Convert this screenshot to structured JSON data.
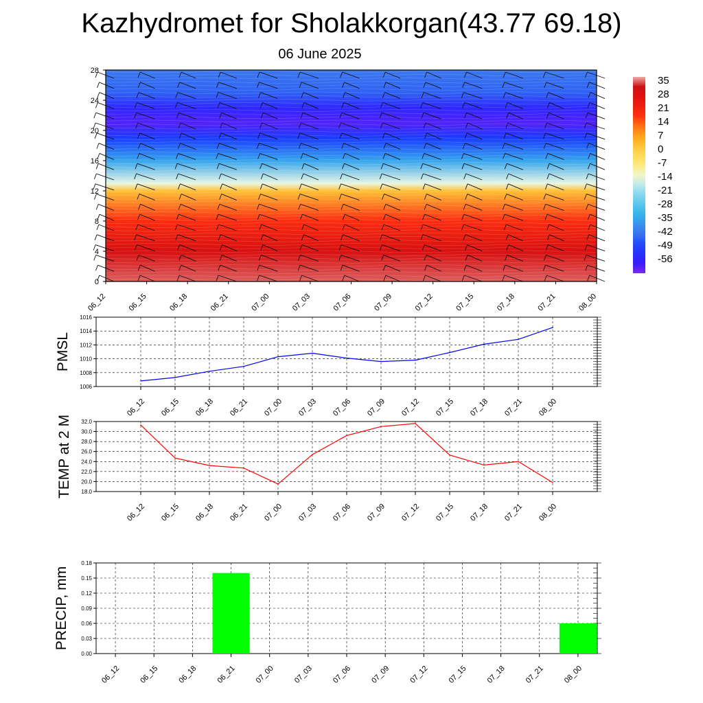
{
  "title": "Kazhydromet for Sholakkorgan(43.77 69.18)",
  "subtitle": "06 June 2025",
  "colors": {
    "pmsl_line": "#0000ff",
    "temp_line": "#ff0000",
    "precip_bar": "#00ff00"
  },
  "chart_data": [
    {
      "type": "heatmap",
      "name": "cross-section",
      "x": [
        "06_12",
        "06_15",
        "06_18",
        "06_21",
        "07_00",
        "07_03",
        "07_06",
        "07_09",
        "07_12",
        "07_15",
        "07_18",
        "07_21",
        "08_00"
      ],
      "ylim": [
        0,
        28
      ],
      "yticks": [
        0,
        4,
        8,
        12,
        16,
        20,
        24,
        28
      ],
      "colorbar": {
        "labels": [
          "35",
          "28",
          "21",
          "14",
          "7",
          "0",
          "-7",
          "-14",
          "-21",
          "-28",
          "-35",
          "-42",
          "-49",
          "-56"
        ],
        "range": [
          -63,
          38
        ]
      },
      "profile": [
        {
          "y": 0,
          "value": 36
        },
        {
          "y": 4,
          "value": 30
        },
        {
          "y": 8,
          "value": 19
        },
        {
          "y": 12,
          "value": 3
        },
        {
          "y": 13,
          "value": -14
        },
        {
          "y": 16,
          "value": -35
        },
        {
          "y": 19,
          "value": -50
        },
        {
          "y": 21,
          "value": -60
        },
        {
          "y": 23,
          "value": -55
        },
        {
          "y": 25,
          "value": -45
        },
        {
          "y": 28,
          "value": -42
        }
      ],
      "wind_barbs": true
    },
    {
      "type": "line",
      "name": "pmsl",
      "ylabel": "PMSL",
      "x": [
        "06_12",
        "06_15",
        "06_18",
        "06_21",
        "07_00",
        "07_03",
        "07_06",
        "07_09",
        "07_12",
        "07_15",
        "07_18",
        "07_21",
        "08_00"
      ],
      "values": [
        1006.8,
        1007.3,
        1008.2,
        1008.9,
        1010.3,
        1010.8,
        1010.1,
        1009.6,
        1009.8,
        1010.9,
        1012.1,
        1012.8,
        1014.5
      ],
      "ylim": [
        1006,
        1016
      ],
      "yticks": [
        "1006",
        "1008",
        "1010",
        "1012",
        "1014",
        "1016"
      ]
    },
    {
      "type": "line",
      "name": "temp",
      "ylabel": "TEMP at 2 M",
      "x": [
        "06_12",
        "06_15",
        "06_18",
        "06_21",
        "07_00",
        "07_03",
        "07_06",
        "07_09",
        "07_12",
        "07_15",
        "07_18",
        "07_21",
        "08_00"
      ],
      "values": [
        31.3,
        24.7,
        23.2,
        22.7,
        19.5,
        25.4,
        29.2,
        31.0,
        31.6,
        25.3,
        23.3,
        24.0,
        19.8
      ],
      "ylim": [
        18,
        32
      ],
      "yticks": [
        "18.0",
        "20.0",
        "22.0",
        "24.0",
        "26.0",
        "28.0",
        "30.0",
        "32.0"
      ]
    },
    {
      "type": "bar",
      "name": "precip",
      "ylabel": "PRECIP, mm",
      "categories": [
        "06_12",
        "06_15",
        "06_18",
        "06_21",
        "07_00",
        "07_03",
        "07_06",
        "07_09",
        "07_12",
        "07_15",
        "07_18",
        "07_21",
        "08_00"
      ],
      "values": [
        0,
        0,
        0,
        0.16,
        0,
        0,
        0,
        0,
        0,
        0,
        0,
        0,
        0.06
      ],
      "ylim": [
        0,
        0.18
      ],
      "yticks": [
        "0.00",
        "0.03",
        "0.06",
        "0.09",
        "0.12",
        "0.15",
        "0.18"
      ]
    }
  ]
}
